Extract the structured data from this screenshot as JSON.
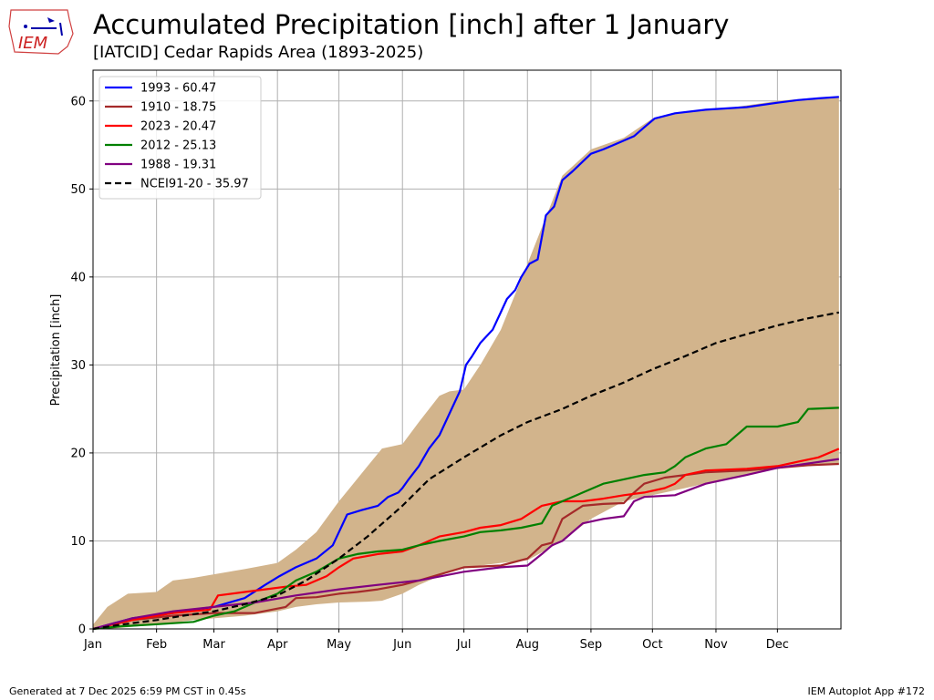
{
  "header": {
    "title": "Accumulated Precipitation [inch] after 1 January",
    "subtitle": "[IATCID] Cedar Rapids Area (1893-2025)",
    "logo_text": "IEM"
  },
  "footer": {
    "left": "Generated at 7 Dec 2025 6:59 PM CST in 0.45s",
    "right": "IEM Autoplot App #172"
  },
  "colors": {
    "range_fill": "#d2b48c",
    "grid": "#b0b0b0"
  },
  "chart_data": {
    "type": "line",
    "title": "Accumulated Precipitation [inch] after 1 January",
    "xlabel": "",
    "ylabel": "Precipitation [inch]",
    "xlim": [
      1,
      366
    ],
    "ylim": [
      0,
      63.5
    ],
    "grid": true,
    "legend_position": "top-left",
    "month_ticks": [
      {
        "label": "Jan",
        "day": 1
      },
      {
        "label": "Feb",
        "day": 32
      },
      {
        "label": "Mar",
        "day": 60
      },
      {
        "label": "Apr",
        "day": 91
      },
      {
        "label": "May",
        "day": 121
      },
      {
        "label": "Jun",
        "day": 152
      },
      {
        "label": "Jul",
        "day": 182
      },
      {
        "label": "Aug",
        "day": 213
      },
      {
        "label": "Sep",
        "day": 244
      },
      {
        "label": "Oct",
        "day": 274
      },
      {
        "label": "Nov",
        "day": 305
      },
      {
        "label": "Dec",
        "day": 335
      }
    ],
    "y_ticks": [
      0,
      10,
      20,
      30,
      40,
      50,
      60
    ],
    "range_band": {
      "x": [
        1,
        8,
        18,
        32,
        40,
        50,
        60,
        75,
        91,
        100,
        110,
        121,
        135,
        142,
        152,
        160,
        165,
        170,
        175,
        182,
        190,
        200,
        213,
        230,
        244,
        260,
        274,
        290,
        305,
        320,
        335,
        350,
        365
      ],
      "upper": [
        0.5,
        2.5,
        4.0,
        4.2,
        5.5,
        5.8,
        6.2,
        6.8,
        7.5,
        9.0,
        11.0,
        14.5,
        18.5,
        20.5,
        21.0,
        23.5,
        25.0,
        26.5,
        27.0,
        27.2,
        30.0,
        34.0,
        41.5,
        51.5,
        54.5,
        55.8,
        58.0,
        58.8,
        59.0,
        59.5,
        60.0,
        60.3,
        60.5
      ],
      "lower": [
        0,
        0,
        0.2,
        0.5,
        0.7,
        1.0,
        1.2,
        1.5,
        2.0,
        2.5,
        2.8,
        3.0,
        3.1,
        3.2,
        4.0,
        5.0,
        5.5,
        6.0,
        6.5,
        7.0,
        7.2,
        7.5,
        7.8,
        10.0,
        12.5,
        14.5,
        15.2,
        16.0,
        16.8,
        17.5,
        18.2,
        18.6,
        18.8
      ]
    },
    "series": [
      {
        "name": "1993 - 60.47",
        "color": "#0000ff",
        "x": [
          1,
          20,
          40,
          50,
          60,
          75,
          85,
          92,
          100,
          110,
          118,
          121,
          125,
          132,
          140,
          145,
          150,
          152,
          155,
          160,
          165,
          170,
          175,
          180,
          183,
          186,
          190,
          196,
          200,
          203,
          207,
          210,
          214,
          218,
          222,
          226,
          230,
          235,
          244,
          250,
          255,
          260,
          265,
          270,
          275,
          285,
          300,
          320,
          335,
          345,
          355,
          365
        ],
        "y": [
          0,
          1.2,
          1.8,
          2.2,
          2.5,
          3.5,
          5.0,
          6.0,
          7.0,
          8.0,
          9.5,
          11.0,
          13.0,
          13.5,
          14.0,
          15.0,
          15.5,
          16.0,
          17.0,
          18.5,
          20.5,
          22.0,
          24.5,
          27.0,
          30.0,
          31.0,
          32.5,
          34.0,
          36.0,
          37.5,
          38.5,
          40.0,
          41.5,
          42.0,
          47.0,
          48.0,
          51.0,
          52.0,
          54.0,
          54.5,
          55.0,
          55.5,
          56.0,
          57.0,
          58.0,
          58.6,
          59.0,
          59.3,
          59.8,
          60.1,
          60.3,
          60.47
        ]
      },
      {
        "name": "1910 - 18.75",
        "color": "#a52a2a",
        "x": [
          1,
          20,
          40,
          60,
          80,
          95,
          100,
          110,
          121,
          130,
          140,
          152,
          160,
          182,
          200,
          213,
          220,
          225,
          230,
          240,
          250,
          260,
          265,
          270,
          280,
          300,
          320,
          335,
          350,
          365
        ],
        "y": [
          0,
          1.0,
          1.5,
          1.8,
          1.8,
          2.5,
          3.5,
          3.6,
          4.0,
          4.2,
          4.5,
          5.0,
          5.5,
          7.0,
          7.2,
          8.0,
          9.5,
          9.8,
          12.5,
          14.0,
          14.2,
          14.3,
          15.5,
          16.5,
          17.2,
          17.8,
          18.0,
          18.3,
          18.6,
          18.75
        ]
      },
      {
        "name": "2023 - 20.47",
        "color": "#ff0000",
        "x": [
          1,
          20,
          40,
          58,
          62,
          75,
          85,
          95,
          105,
          115,
          121,
          128,
          140,
          152,
          160,
          170,
          182,
          190,
          200,
          210,
          220,
          230,
          240,
          250,
          260,
          270,
          280,
          285,
          290,
          300,
          320,
          335,
          345,
          355,
          365
        ],
        "y": [
          0,
          1.0,
          1.8,
          2.2,
          3.8,
          4.2,
          4.5,
          4.8,
          5.0,
          6.0,
          7.0,
          8.0,
          8.5,
          8.8,
          9.5,
          10.5,
          11.0,
          11.5,
          11.8,
          12.5,
          14.0,
          14.5,
          14.5,
          14.8,
          15.2,
          15.5,
          16.0,
          16.5,
          17.5,
          18.0,
          18.2,
          18.5,
          19.0,
          19.5,
          20.47
        ]
      },
      {
        "name": "2012 - 25.13",
        "color": "#008000",
        "x": [
          1,
          15,
          30,
          50,
          60,
          70,
          80,
          91,
          100,
          110,
          121,
          130,
          140,
          152,
          160,
          170,
          182,
          190,
          200,
          210,
          220,
          225,
          230,
          240,
          250,
          260,
          270,
          280,
          285,
          290,
          300,
          310,
          320,
          335,
          345,
          350,
          365
        ],
        "y": [
          0,
          0.3,
          0.5,
          0.8,
          1.5,
          2.0,
          3.0,
          4.0,
          5.5,
          6.5,
          8.0,
          8.5,
          8.8,
          9.0,
          9.5,
          10.0,
          10.5,
          11.0,
          11.2,
          11.5,
          12.0,
          14.0,
          14.5,
          15.5,
          16.5,
          17.0,
          17.5,
          17.8,
          18.5,
          19.5,
          20.5,
          21.0,
          23.0,
          23.0,
          23.5,
          25.0,
          25.13
        ]
      },
      {
        "name": "1988 - 19.31",
        "color": "#800080",
        "x": [
          1,
          20,
          40,
          60,
          80,
          100,
          121,
          140,
          160,
          182,
          200,
          213,
          220,
          225,
          230,
          240,
          250,
          260,
          265,
          270,
          285,
          300,
          320,
          335,
          350,
          365
        ],
        "y": [
          0,
          1.2,
          2.0,
          2.5,
          3.0,
          3.8,
          4.5,
          5.0,
          5.5,
          6.5,
          7.0,
          7.2,
          8.5,
          9.5,
          10.0,
          12.0,
          12.5,
          12.8,
          14.5,
          15.0,
          15.2,
          16.5,
          17.5,
          18.3,
          18.8,
          19.31
        ]
      },
      {
        "name": "NCEI91-20 - 35.97",
        "color": "#000000",
        "dashed": true,
        "x": [
          1,
          15,
          32,
          45,
          60,
          75,
          91,
          105,
          121,
          135,
          152,
          165,
          182,
          200,
          213,
          230,
          244,
          260,
          274,
          290,
          305,
          320,
          335,
          350,
          365
        ],
        "y": [
          0,
          0.5,
          1.0,
          1.5,
          2.0,
          2.8,
          3.8,
          5.5,
          8.0,
          10.5,
          14.0,
          17.0,
          19.5,
          22.0,
          23.5,
          25.0,
          26.5,
          28.0,
          29.5,
          31.0,
          32.5,
          33.5,
          34.5,
          35.3,
          35.97
        ]
      }
    ]
  }
}
